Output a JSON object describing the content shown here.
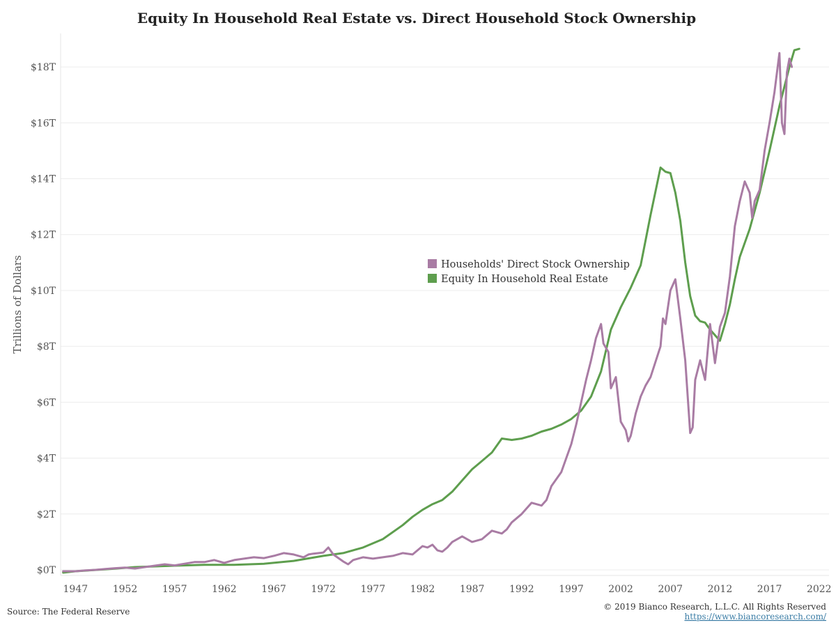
{
  "chart_data": {
    "type": "line",
    "title": "Equity In Household Real Estate vs. Direct Household Stock Ownership",
    "ylabel": "Trillions of Dollars",
    "xlabel": "",
    "xlim": [
      1945.5,
      2023
    ],
    "ylim": [
      -0.2,
      19.2
    ],
    "x_ticks": [
      1947,
      1952,
      1957,
      1962,
      1967,
      1972,
      1977,
      1982,
      1987,
      1992,
      1997,
      2002,
      2007,
      2012,
      2017,
      2022
    ],
    "y_ticks": [
      0,
      2,
      4,
      6,
      8,
      10,
      12,
      14,
      16,
      18
    ],
    "y_tick_labels": [
      "$0T",
      "$2T",
      "$4T",
      "$6T",
      "$8T",
      "$10T",
      "$12T",
      "$14T",
      "$16T",
      "$18T"
    ],
    "grid": "horizontal",
    "legend_position": "center-right",
    "series": [
      {
        "name": "Households' Direct Stock Ownership",
        "color": "#a97ca4",
        "points": [
          [
            1945.75,
            -0.05
          ],
          [
            1947,
            -0.05
          ],
          [
            1948,
            -0.02
          ],
          [
            1949,
            0.0
          ],
          [
            1950,
            0.03
          ],
          [
            1951,
            0.06
          ],
          [
            1952,
            0.08
          ],
          [
            1953,
            0.05
          ],
          [
            1954,
            0.1
          ],
          [
            1955,
            0.15
          ],
          [
            1956,
            0.2
          ],
          [
            1957,
            0.16
          ],
          [
            1958,
            0.22
          ],
          [
            1959,
            0.28
          ],
          [
            1960,
            0.28
          ],
          [
            1961,
            0.35
          ],
          [
            1962,
            0.25
          ],
          [
            1962.5,
            0.3
          ],
          [
            1963,
            0.35
          ],
          [
            1964,
            0.4
          ],
          [
            1965,
            0.45
          ],
          [
            1966,
            0.42
          ],
          [
            1967,
            0.5
          ],
          [
            1968,
            0.6
          ],
          [
            1969,
            0.55
          ],
          [
            1970,
            0.45
          ],
          [
            1970.5,
            0.55
          ],
          [
            1971,
            0.58
          ],
          [
            1972,
            0.62
          ],
          [
            1972.5,
            0.8
          ],
          [
            1973,
            0.55
          ],
          [
            1974,
            0.3
          ],
          [
            1974.5,
            0.2
          ],
          [
            1975,
            0.35
          ],
          [
            1976,
            0.45
          ],
          [
            1977,
            0.4
          ],
          [
            1978,
            0.45
          ],
          [
            1979,
            0.5
          ],
          [
            1980,
            0.6
          ],
          [
            1981,
            0.55
          ],
          [
            1982,
            0.85
          ],
          [
            1982.5,
            0.8
          ],
          [
            1983,
            0.9
          ],
          [
            1983.5,
            0.7
          ],
          [
            1984,
            0.65
          ],
          [
            1984.5,
            0.8
          ],
          [
            1985,
            1.0
          ],
          [
            1986,
            1.2
          ],
          [
            1987,
            1.0
          ],
          [
            1988,
            1.1
          ],
          [
            1989,
            1.4
          ],
          [
            1990,
            1.3
          ],
          [
            1990.5,
            1.45
          ],
          [
            1991,
            1.7
          ],
          [
            1992,
            2.0
          ],
          [
            1993,
            2.4
          ],
          [
            1994,
            2.3
          ],
          [
            1994.5,
            2.5
          ],
          [
            1995,
            3.0
          ],
          [
            1996,
            3.5
          ],
          [
            1996.5,
            4.0
          ],
          [
            1997,
            4.5
          ],
          [
            1997.5,
            5.2
          ],
          [
            1998,
            6.0
          ],
          [
            1998.5,
            6.8
          ],
          [
            1999,
            7.5
          ],
          [
            1999.5,
            8.3
          ],
          [
            2000,
            8.8
          ],
          [
            2000.25,
            8.1
          ],
          [
            2000.75,
            7.8
          ],
          [
            2001,
            6.5
          ],
          [
            2001.5,
            6.9
          ],
          [
            2002,
            5.3
          ],
          [
            2002.5,
            5.0
          ],
          [
            2002.75,
            4.6
          ],
          [
            2003,
            4.8
          ],
          [
            2003.5,
            5.6
          ],
          [
            2004,
            6.2
          ],
          [
            2004.5,
            6.6
          ],
          [
            2005,
            6.9
          ],
          [
            2006,
            8.0
          ],
          [
            2006.25,
            9.0
          ],
          [
            2006.5,
            8.8
          ],
          [
            2007,
            10.0
          ],
          [
            2007.5,
            10.4
          ],
          [
            2008,
            9.0
          ],
          [
            2008.5,
            7.5
          ],
          [
            2009,
            4.9
          ],
          [
            2009.25,
            5.1
          ],
          [
            2009.5,
            6.8
          ],
          [
            2010,
            7.5
          ],
          [
            2010.5,
            6.8
          ],
          [
            2011,
            8.8
          ],
          [
            2011.5,
            7.4
          ],
          [
            2012,
            8.7
          ],
          [
            2012.5,
            9.2
          ],
          [
            2013,
            10.5
          ],
          [
            2013.5,
            12.3
          ],
          [
            2014,
            13.2
          ],
          [
            2014.5,
            13.9
          ],
          [
            2015,
            13.5
          ],
          [
            2015.25,
            12.6
          ],
          [
            2015.5,
            13.2
          ],
          [
            2016,
            13.6
          ],
          [
            2016.5,
            15.0
          ],
          [
            2017,
            16.0
          ],
          [
            2017.5,
            17.1
          ],
          [
            2018,
            18.5
          ],
          [
            2018.25,
            16.0
          ],
          [
            2018.5,
            15.6
          ],
          [
            2018.75,
            17.8
          ],
          [
            2019,
            18.3
          ],
          [
            2019.25,
            18.0
          ]
        ]
      },
      {
        "name": "Equity In Household Real Estate",
        "color": "#5e9e4e",
        "points": [
          [
            1945.75,
            -0.1
          ],
          [
            1947,
            -0.05
          ],
          [
            1950,
            0.02
          ],
          [
            1953,
            0.1
          ],
          [
            1957,
            0.15
          ],
          [
            1960,
            0.18
          ],
          [
            1963,
            0.18
          ],
          [
            1966,
            0.22
          ],
          [
            1969,
            0.32
          ],
          [
            1972,
            0.5
          ],
          [
            1974,
            0.6
          ],
          [
            1976,
            0.8
          ],
          [
            1978,
            1.1
          ],
          [
            1980,
            1.6
          ],
          [
            1981,
            1.9
          ],
          [
            1982,
            2.15
          ],
          [
            1983,
            2.35
          ],
          [
            1984,
            2.5
          ],
          [
            1985,
            2.8
          ],
          [
            1986,
            3.2
          ],
          [
            1987,
            3.6
          ],
          [
            1988,
            3.9
          ],
          [
            1989,
            4.2
          ],
          [
            1990,
            4.7
          ],
          [
            1991,
            4.65
          ],
          [
            1992,
            4.7
          ],
          [
            1993,
            4.8
          ],
          [
            1994,
            4.95
          ],
          [
            1995,
            5.05
          ],
          [
            1996,
            5.2
          ],
          [
            1997,
            5.4
          ],
          [
            1998,
            5.7
          ],
          [
            1999,
            6.2
          ],
          [
            2000,
            7.1
          ],
          [
            2001,
            8.6
          ],
          [
            2002,
            9.4
          ],
          [
            2003,
            10.1
          ],
          [
            2004,
            10.9
          ],
          [
            2005,
            12.7
          ],
          [
            2006,
            14.4
          ],
          [
            2006.5,
            14.25
          ],
          [
            2007,
            14.2
          ],
          [
            2007.5,
            13.5
          ],
          [
            2008,
            12.5
          ],
          [
            2008.5,
            11.0
          ],
          [
            2009,
            9.8
          ],
          [
            2009.5,
            9.1
          ],
          [
            2010,
            8.9
          ],
          [
            2010.5,
            8.85
          ],
          [
            2011,
            8.6
          ],
          [
            2011.5,
            8.4
          ],
          [
            2012,
            8.2
          ],
          [
            2012.5,
            8.8
          ],
          [
            2013,
            9.5
          ],
          [
            2013.5,
            10.4
          ],
          [
            2014,
            11.2
          ],
          [
            2015,
            12.2
          ],
          [
            2016,
            13.5
          ],
          [
            2017,
            15.0
          ],
          [
            2018,
            16.6
          ],
          [
            2018.5,
            17.3
          ],
          [
            2019,
            18.0
          ],
          [
            2019.5,
            18.6
          ],
          [
            2020,
            18.65
          ]
        ]
      }
    ]
  },
  "footer": {
    "source": "Source: The Federal Reserve",
    "copyright": "© 2019 Bianco Research, L.L.C. All Rights Reserved",
    "link": "https://www.biancoresearch.com/"
  }
}
